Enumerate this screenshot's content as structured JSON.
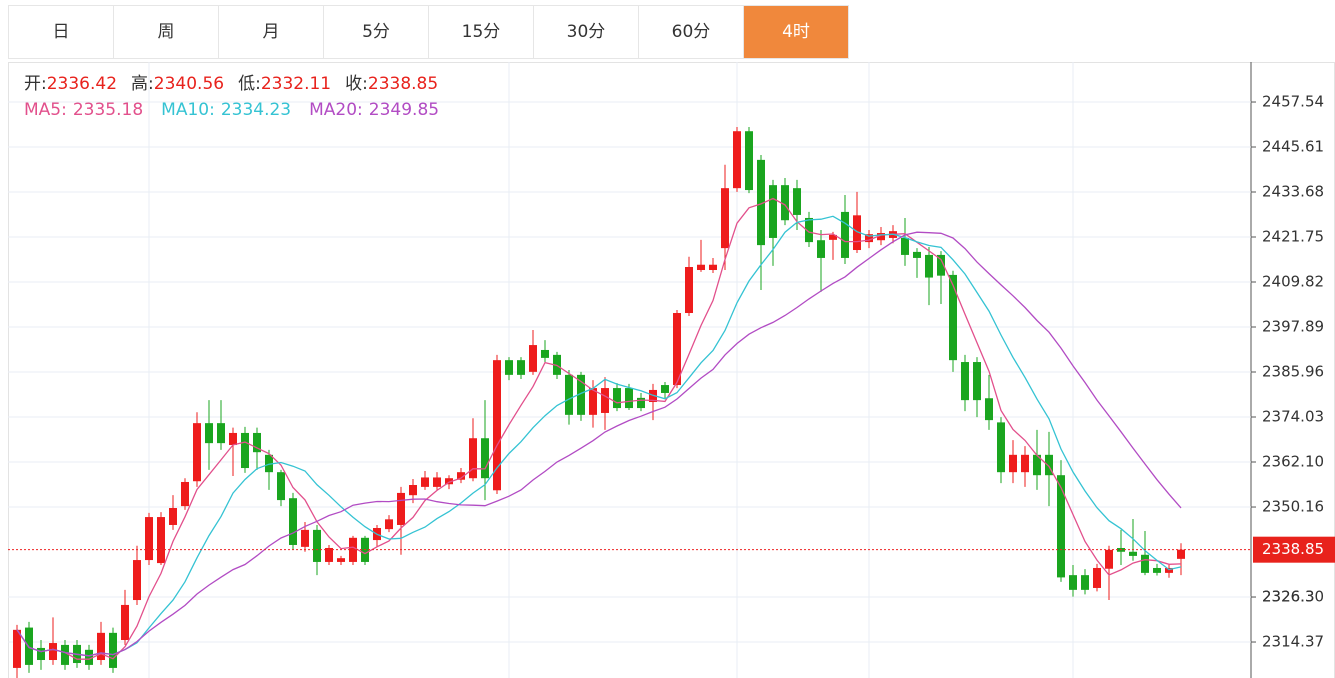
{
  "tabs": [
    "日",
    "周",
    "月",
    "5分",
    "15分",
    "30分",
    "60分",
    "4时"
  ],
  "active_tab": 7,
  "chart_data": {
    "type": "candlestick",
    "up_color": "#ee1c1c",
    "down_color": "#1aa51f",
    "info_labels": [
      "开:",
      "高:",
      "低:",
      "收:"
    ],
    "ma": [
      {
        "name": "MA5:",
        "period": 5,
        "value": 2335.18,
        "color": "#e2508c"
      },
      {
        "name": "MA10:",
        "period": 10,
        "value": 2334.23,
        "color": "#35c3d3"
      },
      {
        "name": "MA20:",
        "period": 20,
        "value": 2349.85,
        "color": "#b24cc4"
      }
    ],
    "ylim": [
      2304.83,
      2468.15
    ],
    "yticks": [
      2314.37,
      2326.3,
      {
        "value": 2326.3,
        "label": "2326.30"
      },
      2350.16,
      {
        "value": 2362.1,
        "label": "2362.10"
      },
      2374.03,
      2385.96,
      2397.89,
      2409.82,
      2421.75,
      2433.68,
      2445.61,
      2457.54
    ],
    "grid": true,
    "open": [
      2307.5,
      2318.2,
      2312.8,
      2309.6,
      2313.6,
      2313.6,
      2312.3,
      2309.6,
      2316.8,
      2314.9,
      2325.5,
      2336.1,
      2335.3,
      2345.4,
      2350.4,
      2357.0,
      2372.4,
      2372.4,
      2366.6,
      2369.8,
      2369.8,
      2364.0,
      2359.4,
      2352.5,
      2339.6,
      2344.1,
      2335.6,
      2335.6,
      2335.6,
      2342.0,
      2341.4,
      2344.3,
      2345.4,
      2353.3,
      2355.5,
      2355.5,
      2356.2,
      2357.4,
      2357.8,
      2368.4,
      2354.6,
      2389.1,
      2389.1,
      2386.0,
      2391.8,
      2390.5,
      2385.2,
      2385.2,
      2374.6,
      2375.1,
      2381.7,
      2381.7,
      2379.1,
      2378.0,
      2382.5,
      2382.5,
      2401.6,
      2413.0,
      2413.0,
      2418.8,
      2434.7,
      2449.8,
      2442.2,
      2435.5,
      2435.5,
      2434.7,
      2426.8,
      2420.9,
      2421.0,
      2428.4,
      2418.3,
      2420.4,
      2420.9,
      2421.5,
      2421.5,
      2417.8,
      2417.0,
      2417.0,
      2411.7,
      2388.6,
      2388.6,
      2379.0,
      2372.6,
      2359.4,
      2359.4,
      2364.0,
      2364.0,
      2358.6,
      2332.1,
      2332.1,
      2328.7,
      2333.8,
      2339.3,
      2338.3,
      2337.5,
      2334.0,
      2332.7,
      2336.42
    ],
    "high": [
      2318.9,
      2319.7,
      2314.9,
      2320.9,
      2314.9,
      2314.9,
      2313.6,
      2319.7,
      2318.2,
      2328.2,
      2339.9,
      2348.6,
      2348.8,
      2353.3,
      2357.8,
      2375.3,
      2378.5,
      2378.5,
      2371.2,
      2371.4,
      2371.2,
      2365.3,
      2360.0,
      2353.9,
      2346.2,
      2345.4,
      2340.1,
      2337.2,
      2342.5,
      2342.5,
      2345.4,
      2348.0,
      2355.5,
      2357.6,
      2359.7,
      2359.4,
      2358.6,
      2360.5,
      2373.7,
      2378.5,
      2390.5,
      2389.9,
      2389.9,
      2397.1,
      2394.4,
      2391.3,
      2386.5,
      2386.0,
      2383.8,
      2384.6,
      2383.0,
      2382.8,
      2380.4,
      2382.8,
      2383.3,
      2402.4,
      2416.5,
      2421.0,
      2416.2,
      2440.9,
      2450.9,
      2450.9,
      2443.5,
      2436.9,
      2437.4,
      2436.9,
      2428.4,
      2423.6,
      2423.1,
      2432.9,
      2433.7,
      2423.6,
      2424.4,
      2424.9,
      2426.8,
      2418.8,
      2419.1,
      2418.0,
      2412.8,
      2390.5,
      2389.9,
      2385.2,
      2374.0,
      2367.9,
      2366.3,
      2370.6,
      2370.1,
      2362.6,
      2334.8,
      2333.7,
      2335.1,
      2339.9,
      2344.1,
      2347.0,
      2343.8,
      2335.1,
      2334.8,
      2340.56
    ],
    "low": [
      2304.8,
      2306.2,
      2307.0,
      2308.3,
      2307.0,
      2307.5,
      2307.0,
      2308.3,
      2306.2,
      2313.6,
      2324.2,
      2334.8,
      2334.8,
      2344.1,
      2349.4,
      2355.5,
      2360.0,
      2365.3,
      2358.4,
      2359.2,
      2360.0,
      2354.7,
      2350.4,
      2338.8,
      2338.3,
      2332.1,
      2334.8,
      2334.8,
      2334.8,
      2334.8,
      2339.6,
      2343.5,
      2337.5,
      2351.2,
      2354.7,
      2354.7,
      2354.9,
      2356.5,
      2357.0,
      2352.0,
      2353.6,
      2383.8,
      2384.1,
      2385.2,
      2388.6,
      2384.1,
      2372.0,
      2373.0,
      2371.2,
      2370.6,
      2375.6,
      2375.9,
      2375.6,
      2373.2,
      2378.8,
      2381.7,
      2400.8,
      2412.5,
      2412.2,
      2413.0,
      2433.7,
      2433.4,
      2407.7,
      2414.1,
      2424.9,
      2423.6,
      2419.1,
      2407.2,
      2415.7,
      2414.6,
      2417.5,
      2418.8,
      2419.6,
      2420.1,
      2414.1,
      2410.9,
      2403.7,
      2404.0,
      2386.0,
      2375.6,
      2374.0,
      2370.6,
      2356.5,
      2356.5,
      2355.5,
      2354.7,
      2350.4,
      2330.3,
      2326.4,
      2327.0,
      2327.8,
      2325.5,
      2334.8,
      2335.9,
      2332.1,
      2332.0,
      2331.4,
      2332.11
    ],
    "close": [
      2317.6,
      2308.3,
      2309.6,
      2314.1,
      2308.3,
      2308.8,
      2308.3,
      2316.8,
      2307.5,
      2324.2,
      2336.1,
      2347.5,
      2347.5,
      2349.9,
      2356.8,
      2372.4,
      2367.1,
      2367.1,
      2369.8,
      2360.5,
      2364.7,
      2359.4,
      2352.0,
      2340.1,
      2344.1,
      2335.6,
      2339.3,
      2336.6,
      2342.0,
      2335.6,
      2344.6,
      2346.9,
      2353.9,
      2356.0,
      2358.0,
      2358.0,
      2357.8,
      2359.4,
      2368.4,
      2357.8,
      2389.1,
      2385.2,
      2385.2,
      2393.1,
      2389.7,
      2385.2,
      2374.6,
      2374.6,
      2381.7,
      2381.7,
      2376.4,
      2376.4,
      2376.4,
      2381.2,
      2380.4,
      2401.6,
      2413.8,
      2414.4,
      2414.4,
      2434.7,
      2449.8,
      2434.2,
      2419.6,
      2421.5,
      2426.2,
      2427.6,
      2420.4,
      2416.2,
      2422.3,
      2416.2,
      2427.5,
      2422.5,
      2422.8,
      2423.3,
      2417.0,
      2416.2,
      2411.0,
      2411.5,
      2389.1,
      2378.5,
      2378.5,
      2373.2,
      2359.4,
      2364.0,
      2364.0,
      2358.6,
      2358.6,
      2331.5,
      2328.2,
      2328.2,
      2334.0,
      2338.8,
      2338.3,
      2337.2,
      2332.7,
      2332.7,
      2334.0,
      2338.85
    ]
  }
}
